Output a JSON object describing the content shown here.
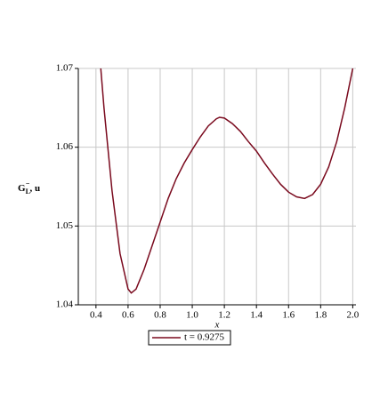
{
  "chart_data": {
    "type": "line",
    "ylabel": {
      "base": "G",
      "sub": "L",
      "sup": "−",
      "rest": ", u"
    },
    "xlabel": "x",
    "x": [
      0.43,
      0.45,
      0.5,
      0.55,
      0.6,
      0.62,
      0.65,
      0.7,
      0.75,
      0.8,
      0.85,
      0.9,
      0.95,
      1.0,
      1.05,
      1.1,
      1.15,
      1.17,
      1.2,
      1.25,
      1.3,
      1.35,
      1.4,
      1.45,
      1.5,
      1.55,
      1.6,
      1.65,
      1.7,
      1.75,
      1.8,
      1.85,
      1.9,
      1.95,
      2.0
    ],
    "series": [
      {
        "name": "t = 0.9275",
        "color": "#7a0a1e",
        "values": [
          1.07,
          1.065,
          1.0545,
          1.0465,
          1.042,
          1.0415,
          1.042,
          1.0445,
          1.0475,
          1.0505,
          1.0535,
          1.056,
          1.058,
          1.0597,
          1.0613,
          1.0627,
          1.0636,
          1.0638,
          1.0637,
          1.063,
          1.062,
          1.0607,
          1.0595,
          1.058,
          1.0566,
          1.0553,
          1.0543,
          1.0537,
          1.0535,
          1.054,
          1.0553,
          1.0575,
          1.0607,
          1.065,
          1.07
        ]
      }
    ],
    "xlim": [
      0.29,
      2.02
    ],
    "ylim": [
      1.04,
      1.07
    ],
    "xticks": [
      0.4,
      0.6,
      0.8,
      {
        "value": 1.0,
        "label": "1.0"
      },
      1.2,
      1.4,
      1.6,
      1.8,
      {
        "value": 2.0,
        "label": "2.0"
      }
    ],
    "yticks": [
      1.04,
      1.05,
      1.06,
      1.07
    ],
    "grid": true
  }
}
